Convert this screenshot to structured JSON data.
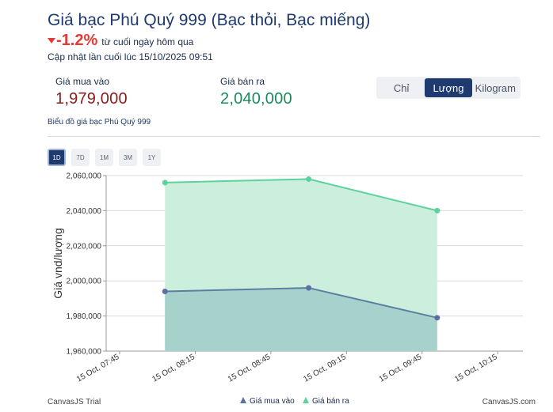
{
  "header": {
    "title": "Giá bạc Phú Quý 999 (Bạc thỏi, Bạc miếng)",
    "change_value": "-1.2%",
    "change_text": "từ cuối ngày hôm qua",
    "updated": "Cập nhật lần cuối lúc 15/10/2025 09:51"
  },
  "prices": {
    "buy_label": "Giá mua vào",
    "buy_value": "1,979,000",
    "sell_label": "Giá bán ra",
    "sell_value": "2,040,000"
  },
  "unit_toggle": {
    "options": [
      "Chỉ",
      "Lượng",
      "Kilogram"
    ],
    "selected": "Lượng"
  },
  "chart_caption": "Biểu đồ giá bạc Phú Quý 999",
  "ranges": {
    "options": [
      "1D",
      "7D",
      "1M",
      "3M",
      "1Y"
    ],
    "selected": "1D"
  },
  "credits": {
    "left": "CanvasJS Trial",
    "right": "CanvasJS.com"
  },
  "colors": {
    "buy_line": "#5b7fa0",
    "buy_fill": "#a6d1cc",
    "sell_line": "#5cd39a",
    "sell_fill": "#cbefdc",
    "buy_marker": "#5b6fa0",
    "sell_marker": "#5cd39a"
  },
  "chart_data": {
    "type": "area",
    "ylabel": "Giá vnd/lượng",
    "xlabel": "",
    "ylim": [
      1960000,
      2060000
    ],
    "yticks": [
      1960000,
      1980000,
      2000000,
      2020000,
      2040000,
      2060000
    ],
    "ytick_labels": [
      "1,960,000",
      "1,980,000",
      "2,000,000",
      "2,020,000",
      "2,040,000",
      "2,060,000"
    ],
    "xlim": [
      "15 Oct, 07:45",
      "15 Oct, 10:25"
    ],
    "xticks": [
      "15 Oct, 07:45",
      "15 Oct, 08:15",
      "15 Oct, 08:45",
      "15 Oct, 09:15",
      "15 Oct, 09:45",
      "15 Oct, 10:15"
    ],
    "x": [
      "15 Oct, 08:03",
      "15 Oct, 09:00",
      "15 Oct, 09:51"
    ],
    "series": [
      {
        "name": "Giá mua vào",
        "values": [
          1994000,
          1996000,
          1979000
        ]
      },
      {
        "name": "Giá bán ra",
        "values": [
          2056000,
          2058000,
          2040000
        ]
      }
    ],
    "legend": "bottom-center",
    "grid": true
  }
}
